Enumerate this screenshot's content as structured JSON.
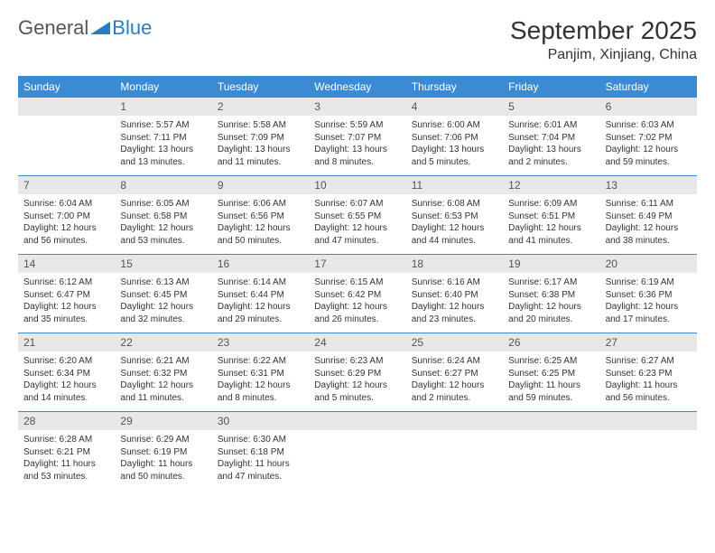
{
  "logo": {
    "text_general": "General",
    "text_blue": "Blue",
    "shape_color": "#2a7dc4"
  },
  "header": {
    "month_title": "September 2025",
    "location": "Panjim, Xinjiang, China"
  },
  "colors": {
    "header_bg": "#3b8bd4",
    "header_fg": "#ffffff",
    "daynum_bg": "#e8e8e8",
    "text": "#333333",
    "divider": "#3b8bd4"
  },
  "day_names": [
    "Sunday",
    "Monday",
    "Tuesday",
    "Wednesday",
    "Thursday",
    "Friday",
    "Saturday"
  ],
  "weeks": [
    [
      {
        "num": "",
        "sunrise": "",
        "sunset": "",
        "daylight1": "",
        "daylight2": ""
      },
      {
        "num": "1",
        "sunrise": "Sunrise: 5:57 AM",
        "sunset": "Sunset: 7:11 PM",
        "daylight1": "Daylight: 13 hours",
        "daylight2": "and 13 minutes."
      },
      {
        "num": "2",
        "sunrise": "Sunrise: 5:58 AM",
        "sunset": "Sunset: 7:09 PM",
        "daylight1": "Daylight: 13 hours",
        "daylight2": "and 11 minutes."
      },
      {
        "num": "3",
        "sunrise": "Sunrise: 5:59 AM",
        "sunset": "Sunset: 7:07 PM",
        "daylight1": "Daylight: 13 hours",
        "daylight2": "and 8 minutes."
      },
      {
        "num": "4",
        "sunrise": "Sunrise: 6:00 AM",
        "sunset": "Sunset: 7:06 PM",
        "daylight1": "Daylight: 13 hours",
        "daylight2": "and 5 minutes."
      },
      {
        "num": "5",
        "sunrise": "Sunrise: 6:01 AM",
        "sunset": "Sunset: 7:04 PM",
        "daylight1": "Daylight: 13 hours",
        "daylight2": "and 2 minutes."
      },
      {
        "num": "6",
        "sunrise": "Sunrise: 6:03 AM",
        "sunset": "Sunset: 7:02 PM",
        "daylight1": "Daylight: 12 hours",
        "daylight2": "and 59 minutes."
      }
    ],
    [
      {
        "num": "7",
        "sunrise": "Sunrise: 6:04 AM",
        "sunset": "Sunset: 7:00 PM",
        "daylight1": "Daylight: 12 hours",
        "daylight2": "and 56 minutes."
      },
      {
        "num": "8",
        "sunrise": "Sunrise: 6:05 AM",
        "sunset": "Sunset: 6:58 PM",
        "daylight1": "Daylight: 12 hours",
        "daylight2": "and 53 minutes."
      },
      {
        "num": "9",
        "sunrise": "Sunrise: 6:06 AM",
        "sunset": "Sunset: 6:56 PM",
        "daylight1": "Daylight: 12 hours",
        "daylight2": "and 50 minutes."
      },
      {
        "num": "10",
        "sunrise": "Sunrise: 6:07 AM",
        "sunset": "Sunset: 6:55 PM",
        "daylight1": "Daylight: 12 hours",
        "daylight2": "and 47 minutes."
      },
      {
        "num": "11",
        "sunrise": "Sunrise: 6:08 AM",
        "sunset": "Sunset: 6:53 PM",
        "daylight1": "Daylight: 12 hours",
        "daylight2": "and 44 minutes."
      },
      {
        "num": "12",
        "sunrise": "Sunrise: 6:09 AM",
        "sunset": "Sunset: 6:51 PM",
        "daylight1": "Daylight: 12 hours",
        "daylight2": "and 41 minutes."
      },
      {
        "num": "13",
        "sunrise": "Sunrise: 6:11 AM",
        "sunset": "Sunset: 6:49 PM",
        "daylight1": "Daylight: 12 hours",
        "daylight2": "and 38 minutes."
      }
    ],
    [
      {
        "num": "14",
        "sunrise": "Sunrise: 6:12 AM",
        "sunset": "Sunset: 6:47 PM",
        "daylight1": "Daylight: 12 hours",
        "daylight2": "and 35 minutes."
      },
      {
        "num": "15",
        "sunrise": "Sunrise: 6:13 AM",
        "sunset": "Sunset: 6:45 PM",
        "daylight1": "Daylight: 12 hours",
        "daylight2": "and 32 minutes."
      },
      {
        "num": "16",
        "sunrise": "Sunrise: 6:14 AM",
        "sunset": "Sunset: 6:44 PM",
        "daylight1": "Daylight: 12 hours",
        "daylight2": "and 29 minutes."
      },
      {
        "num": "17",
        "sunrise": "Sunrise: 6:15 AM",
        "sunset": "Sunset: 6:42 PM",
        "daylight1": "Daylight: 12 hours",
        "daylight2": "and 26 minutes."
      },
      {
        "num": "18",
        "sunrise": "Sunrise: 6:16 AM",
        "sunset": "Sunset: 6:40 PM",
        "daylight1": "Daylight: 12 hours",
        "daylight2": "and 23 minutes."
      },
      {
        "num": "19",
        "sunrise": "Sunrise: 6:17 AM",
        "sunset": "Sunset: 6:38 PM",
        "daylight1": "Daylight: 12 hours",
        "daylight2": "and 20 minutes."
      },
      {
        "num": "20",
        "sunrise": "Sunrise: 6:19 AM",
        "sunset": "Sunset: 6:36 PM",
        "daylight1": "Daylight: 12 hours",
        "daylight2": "and 17 minutes."
      }
    ],
    [
      {
        "num": "21",
        "sunrise": "Sunrise: 6:20 AM",
        "sunset": "Sunset: 6:34 PM",
        "daylight1": "Daylight: 12 hours",
        "daylight2": "and 14 minutes."
      },
      {
        "num": "22",
        "sunrise": "Sunrise: 6:21 AM",
        "sunset": "Sunset: 6:32 PM",
        "daylight1": "Daylight: 12 hours",
        "daylight2": "and 11 minutes."
      },
      {
        "num": "23",
        "sunrise": "Sunrise: 6:22 AM",
        "sunset": "Sunset: 6:31 PM",
        "daylight1": "Daylight: 12 hours",
        "daylight2": "and 8 minutes."
      },
      {
        "num": "24",
        "sunrise": "Sunrise: 6:23 AM",
        "sunset": "Sunset: 6:29 PM",
        "daylight1": "Daylight: 12 hours",
        "daylight2": "and 5 minutes."
      },
      {
        "num": "25",
        "sunrise": "Sunrise: 6:24 AM",
        "sunset": "Sunset: 6:27 PM",
        "daylight1": "Daylight: 12 hours",
        "daylight2": "and 2 minutes."
      },
      {
        "num": "26",
        "sunrise": "Sunrise: 6:25 AM",
        "sunset": "Sunset: 6:25 PM",
        "daylight1": "Daylight: 11 hours",
        "daylight2": "and 59 minutes."
      },
      {
        "num": "27",
        "sunrise": "Sunrise: 6:27 AM",
        "sunset": "Sunset: 6:23 PM",
        "daylight1": "Daylight: 11 hours",
        "daylight2": "and 56 minutes."
      }
    ],
    [
      {
        "num": "28",
        "sunrise": "Sunrise: 6:28 AM",
        "sunset": "Sunset: 6:21 PM",
        "daylight1": "Daylight: 11 hours",
        "daylight2": "and 53 minutes."
      },
      {
        "num": "29",
        "sunrise": "Sunrise: 6:29 AM",
        "sunset": "Sunset: 6:19 PM",
        "daylight1": "Daylight: 11 hours",
        "daylight2": "and 50 minutes."
      },
      {
        "num": "30",
        "sunrise": "Sunrise: 6:30 AM",
        "sunset": "Sunset: 6:18 PM",
        "daylight1": "Daylight: 11 hours",
        "daylight2": "and 47 minutes."
      },
      {
        "num": "",
        "sunrise": "",
        "sunset": "",
        "daylight1": "",
        "daylight2": ""
      },
      {
        "num": "",
        "sunrise": "",
        "sunset": "",
        "daylight1": "",
        "daylight2": ""
      },
      {
        "num": "",
        "sunrise": "",
        "sunset": "",
        "daylight1": "",
        "daylight2": ""
      },
      {
        "num": "",
        "sunrise": "",
        "sunset": "",
        "daylight1": "",
        "daylight2": ""
      }
    ]
  ]
}
